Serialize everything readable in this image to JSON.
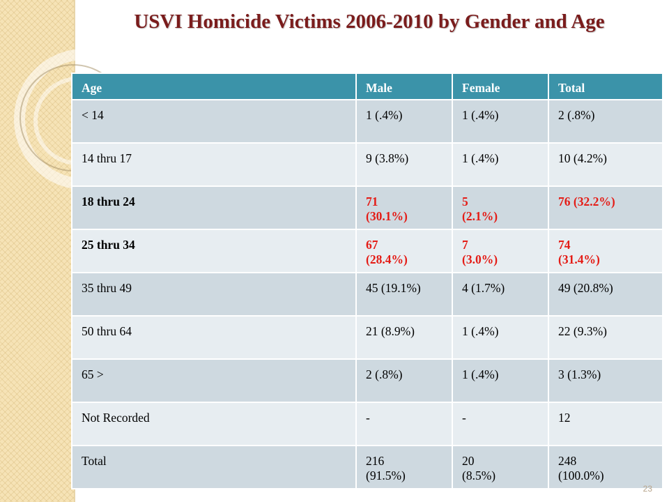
{
  "slide": {
    "title": "USVI Homicide Victims 2006-2010 by Gender and Age",
    "page_number": "23",
    "colors": {
      "title": "#7a1c1c",
      "header_bg": "#3b93a9",
      "highlight_text": "#e41c16"
    }
  },
  "table": {
    "headers": [
      "Age",
      "Male",
      "Female",
      "Total"
    ],
    "rows": [
      {
        "age": "< 14",
        "male": [
          "1 (.4%)"
        ],
        "female": [
          "1  (.4%)"
        ],
        "total": [
          "2 (.8%)"
        ]
      },
      {
        "age": "14 thru 17",
        "male": [
          "9  (3.8%)"
        ],
        "female": [
          "1 (.4%)"
        ],
        "total": [
          "10  (4.2%)"
        ]
      },
      {
        "age": "18 thru 24",
        "male": [
          "71",
          " (30.1%)"
        ],
        "female": [
          "5",
          "(2.1%)"
        ],
        "total": [
          "76  (32.2%)"
        ]
      },
      {
        "age": "25 thru 34",
        "male": [
          "67",
          "(28.4%)"
        ],
        "female": [
          "7",
          "(3.0%)"
        ],
        "total": [
          "74",
          "(31.4%)"
        ]
      },
      {
        "age": "35 thru 49",
        "male": [
          "45  (19.1%)"
        ],
        "female": [
          "4  (1.7%)"
        ],
        "total": [
          "49  (20.8%)"
        ]
      },
      {
        "age": "50 thru 64",
        "male": [
          "21  (8.9%)"
        ],
        "female": [
          "1 (.4%)"
        ],
        "total": [
          "22 (9.3%)"
        ]
      },
      {
        "age": "65 >",
        "male": [
          "2  (.8%)"
        ],
        "female": [
          "1 (.4%)"
        ],
        "total": [
          "3 (1.3%)"
        ]
      },
      {
        "age": "Not Recorded",
        "male": [
          "-"
        ],
        "female": [
          "-"
        ],
        "total": [
          "12"
        ]
      },
      {
        "age": "Total",
        "male": [
          "216",
          "(91.5%)"
        ],
        "female": [
          "20",
          "(8.5%)"
        ],
        "total": [
          "248",
          "(100.0%)"
        ]
      }
    ]
  }
}
